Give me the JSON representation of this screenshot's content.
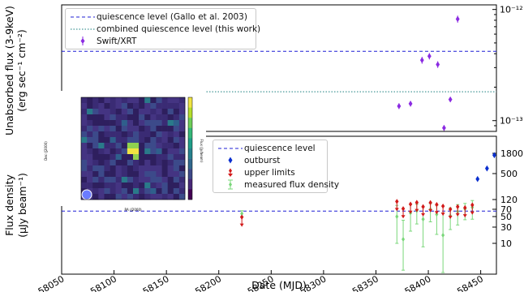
{
  "chart_data": [
    {
      "id": "xray",
      "type": "scatter",
      "ylabel_line1": "Unabsorbed flux (3-9keV)",
      "ylabel_line2": "(erg sec⁻¹ cm⁻²)",
      "y_scale": "log",
      "xlim": [
        58050,
        58465
      ],
      "ylim": [
        8e-14,
        1.1e-12
      ],
      "yticks": [
        {
          "v": 1e-13,
          "label": "10⁻¹³"
        },
        {
          "v": 1e-12,
          "label": "10⁻¹²"
        }
      ],
      "quiescence_gallo": 4.2e-13,
      "quiescence_combined": 1.82e-13,
      "series": [
        {
          "name": "Swift/XRT",
          "color": "#8b2be2",
          "points": [
            {
              "x": 58372,
              "y": 1.35e-13,
              "err": 8e-15
            },
            {
              "x": 58383,
              "y": 1.42e-13,
              "err": 8e-15
            },
            {
              "x": 58394,
              "y": 3.5e-13,
              "err": 2.5e-14
            },
            {
              "x": 58401,
              "y": 3.8e-13,
              "err": 2.5e-14
            },
            {
              "x": 58409,
              "y": 3.2e-13,
              "err": 2.2e-14
            },
            {
              "x": 58415,
              "y": 8.6e-14,
              "err": 5e-15
            },
            {
              "x": 58421,
              "y": 1.55e-13,
              "err": 8e-15
            },
            {
              "x": 58428,
              "y": 8.2e-13,
              "err": 6e-14
            }
          ]
        }
      ],
      "legend": [
        "quiescence level (Gallo et al. 2003)",
        "combined quiescence level (this work)",
        "Swift/XRT"
      ]
    },
    {
      "id": "radio",
      "type": "scatter",
      "xlabel": "Date (MJD)",
      "ylabel_line1": "Flux density",
      "ylabel_line2": "(μJy beam⁻¹)",
      "y_scale": "symlog-like",
      "xlim": [
        58050,
        58465
      ],
      "ylim": [
        -15,
        2600
      ],
      "xticks": [
        58050,
        58100,
        58150,
        58200,
        58250,
        58300,
        58350,
        58400,
        58450
      ],
      "yticks": [
        10,
        30,
        50,
        70,
        120,
        500,
        1800
      ],
      "quiescence_level": 65,
      "series": [
        {
          "name": "outburst",
          "color": "#0a2fcf",
          "points": [
            {
              "x": 58071,
              "y": 1450
            },
            {
              "x": 58447,
              "y": 420
            },
            {
              "x": 58456,
              "y": 830
            },
            {
              "x": 58463,
              "y": 1680
            }
          ]
        },
        {
          "name": "upper limits",
          "color": "#d21a1a",
          "points": [
            {
              "x": 58222,
              "y": 49
            },
            {
              "x": 58370,
              "y": 110
            },
            {
              "x": 58376,
              "y": 73
            },
            {
              "x": 58383,
              "y": 96
            },
            {
              "x": 58389,
              "y": 105
            },
            {
              "x": 58395,
              "y": 83
            },
            {
              "x": 58402,
              "y": 104
            },
            {
              "x": 58408,
              "y": 94
            },
            {
              "x": 58414,
              "y": 86
            },
            {
              "x": 58421,
              "y": 70
            },
            {
              "x": 58428,
              "y": 83
            },
            {
              "x": 58435,
              "y": 78
            },
            {
              "x": 58442,
              "y": 92
            }
          ]
        },
        {
          "name": "measured flux density",
          "color": "#7ad77a",
          "points": [
            {
              "x": 58222,
              "y": 58,
              "err": 8
            },
            {
              "x": 58370,
              "y": 50,
              "err": 40
            },
            {
              "x": 58376,
              "y": 15,
              "err": 28
            },
            {
              "x": 58383,
              "y": 60,
              "err": 35
            },
            {
              "x": 58389,
              "y": 66,
              "err": 30
            },
            {
              "x": 58395,
              "y": 45,
              "err": 38
            },
            {
              "x": 58402,
              "y": 70,
              "err": 30
            },
            {
              "x": 58408,
              "y": 56,
              "err": 35
            },
            {
              "x": 58414,
              "y": 20,
              "err": 40
            },
            {
              "x": 58421,
              "y": 52,
              "err": 25
            },
            {
              "x": 58428,
              "y": 64,
              "err": 30
            },
            {
              "x": 58435,
              "y": 72,
              "err": 28
            },
            {
              "x": 58442,
              "y": 80,
              "err": 35
            }
          ]
        }
      ],
      "legend": [
        "quiescence level",
        "outburst",
        "upper limits",
        "measured flux density"
      ]
    }
  ],
  "inset": {
    "ylabel": "Dec (J2000)",
    "xlabel": "RA (J2000)",
    "colorbar_label": "Flux (Jy/beam)",
    "colors": {
      "background": "#46337f",
      "source": "#f0e442",
      "beam": "#6b7cff"
    }
  }
}
